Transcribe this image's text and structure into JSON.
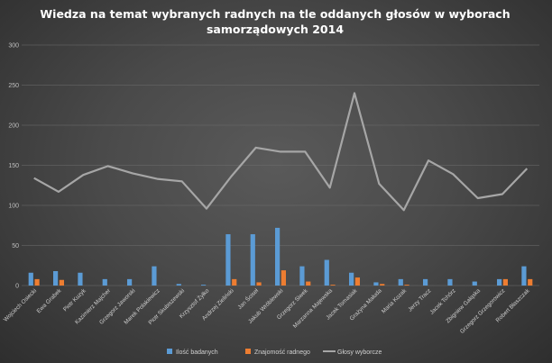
{
  "chart_data": {
    "type": "bar",
    "title_lines": [
      "Wiedza  na temat wybranych  radnych  na tle oddanych  głosów  w wyborach",
      "samorządowych  2014"
    ],
    "categories": [
      "Wojciech Osiecki",
      "Ewa Grabek",
      "Piotr Kuzyk",
      "Kazimierz Majcher",
      "Grzegorz Jaworski",
      "Marek Polakiewicz",
      "Piotr Skubiszewski",
      "Krzysztof Żyłko",
      "Andrzej Zieliński",
      "Jan Ściseł",
      "Jakub Wróblewski",
      "Grzegorz Siwek",
      "Marzanna Majewska",
      "Jacek Tomasiak",
      "Grażyna Małuda",
      "Maria Kozak",
      "Jerzy Tracz",
      "Jacek Tchórz",
      "Zbigniew Gałąska",
      "Grzegorz Grzegorowicz",
      "Robert Błaszczak"
    ],
    "series": [
      {
        "name": "Ilość badanych",
        "type": "bar",
        "color": "#5b9bd5",
        "values": [
          16,
          18,
          16,
          8,
          8,
          24,
          2,
          1,
          64,
          64,
          72,
          24,
          32,
          16,
          4,
          8,
          8,
          8,
          5,
          8,
          24
        ]
      },
      {
        "name": "Znajomość radnego",
        "type": "bar",
        "color": "#ed7d31",
        "values": [
          8,
          7,
          0,
          0,
          0,
          0,
          0,
          0,
          8,
          4,
          19,
          5,
          1,
          10,
          2,
          1,
          0,
          0,
          0,
          8,
          8
        ]
      },
      {
        "name": "Głosy wyborcze",
        "type": "line",
        "color": "#a6a6a6",
        "values": [
          134,
          117,
          138,
          149,
          140,
          133,
          130,
          96,
          136,
          172,
          167,
          167,
          122,
          240,
          127,
          94,
          156,
          139,
          109,
          114,
          146
        ]
      }
    ],
    "ylim": [
      0,
      300
    ],
    "yticks": [
      "0",
      "50",
      "100",
      "150",
      "200",
      "250",
      "300"
    ],
    "grid": true,
    "legend_position": "bottom"
  }
}
